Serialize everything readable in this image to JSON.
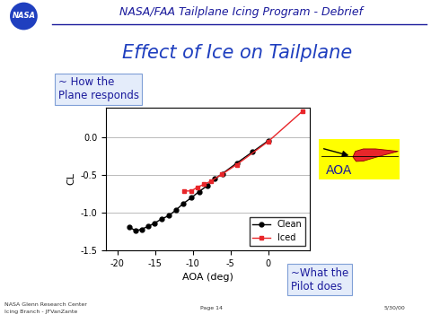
{
  "chart_data": {
    "type": "line",
    "title": "Effect of Ice on Tailplane",
    "x_label": "AOA (deg)",
    "y_label": "CL",
    "series": [
      {
        "name": "Clean",
        "color": "#000000",
        "marker": "circle",
        "line_style": "solid",
        "x": [
          -18.4,
          -17.6,
          -16.8,
          -15.9,
          -15.1,
          -14.1,
          -13.2,
          -12.2,
          -11.3,
          -10.2,
          -9.2,
          -8.1,
          -7.1,
          -6.1,
          -4.2,
          -2.1,
          0.0
        ],
        "values": [
          -1.19,
          -1.24,
          -1.22,
          -1.18,
          -1.14,
          -1.08,
          -1.04,
          -0.96,
          -0.88,
          -0.8,
          -0.72,
          -0.64,
          -0.55,
          -0.48,
          -0.34,
          -0.19,
          -0.04
        ]
      },
      {
        "name": "Iced",
        "color": "#e8262a",
        "marker": "square",
        "line_style": "solid",
        "x": [
          -11.2,
          -10.2,
          -9.4,
          -8.5,
          -7.6,
          -6.2,
          -4.2,
          0.0,
          4.5
        ],
        "values": [
          -0.71,
          -0.71,
          -0.66,
          -0.62,
          -0.58,
          -0.49,
          -0.36,
          -0.05,
          0.35
        ]
      }
    ],
    "xlim": [
      -21.5,
      5.5
    ],
    "xticks": [
      -20,
      -15,
      -10,
      -5,
      0
    ],
    "ylim": [
      -1.5,
      0.4
    ],
    "yticks": [
      {
        "value": -1.5,
        "label": "-1.5"
      },
      {
        "value": -1.0,
        "label": "-1.0"
      },
      {
        "value": -0.5,
        "label": "-0.5"
      },
      {
        "value": 0.0,
        "label": "0.0"
      }
    ],
    "grid": "y",
    "legend": "lower right",
    "annotations": [
      "~ How the\nPlane responds",
      "~What the\nPilot does",
      "AOA"
    ]
  },
  "slide": {
    "logo": "NASA",
    "header": "NASA/FAA Tailplane Icing Program - Debrief",
    "footer": [
      "NASA Glenn Research Center",
      "Icing Branch - JFVanZante"
    ],
    "page": "Page 14",
    "date": "5/30/00"
  }
}
